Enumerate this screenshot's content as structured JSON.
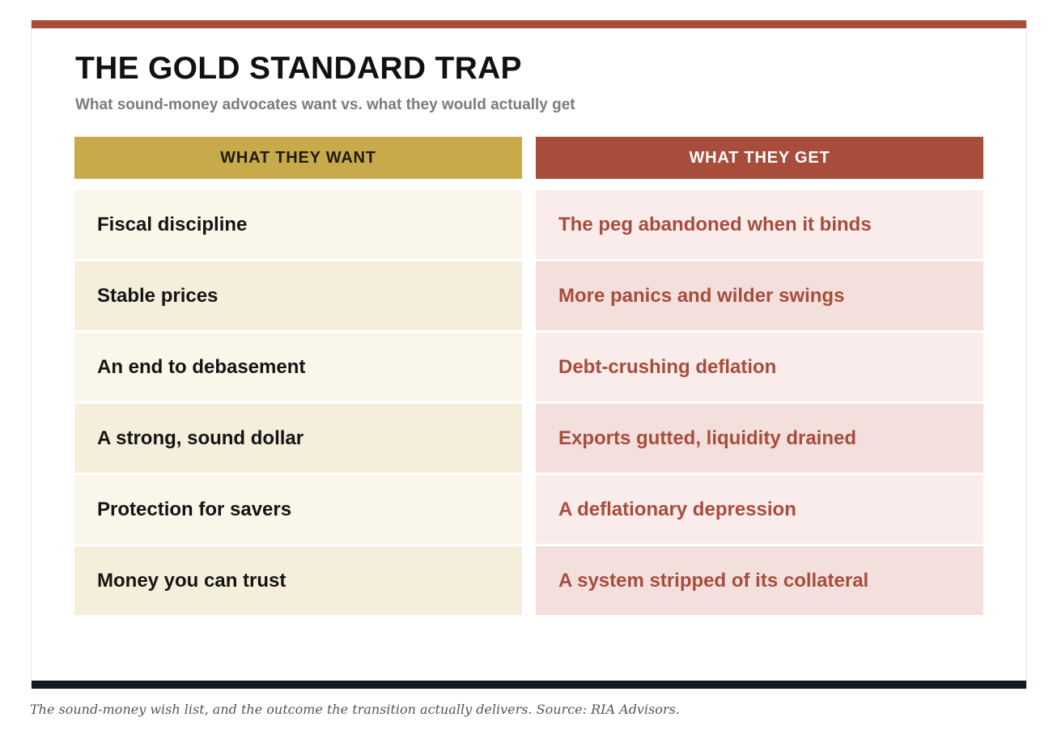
{
  "graphic": {
    "title": "THE GOLD STANDARD TRAP",
    "subtitle": "What sound-money advocates want vs. what they would actually get",
    "want_header": "WHAT THEY WANT",
    "get_header": "WHAT THEY GET",
    "want_items": [
      "Fiscal discipline",
      "Stable prices",
      "An end to debasement",
      "A strong, sound dollar",
      "Protection for savers",
      "Money you can trust"
    ],
    "get_items": [
      "The peg abandoned when it binds",
      "More panics and wilder swings",
      "Debt-crushing deflation",
      "Exports gutted, liquidity drained",
      "A deflationary depression",
      "A system stripped of its collateral"
    ]
  },
  "caption": "The sound-money wish list, and the outcome the transition actually delivers. Source: RIA Advisors.",
  "colors": {
    "accent_red": "#a84c3c",
    "accent_gold": "#c9aa4b",
    "bottom_bar": "#131820"
  }
}
